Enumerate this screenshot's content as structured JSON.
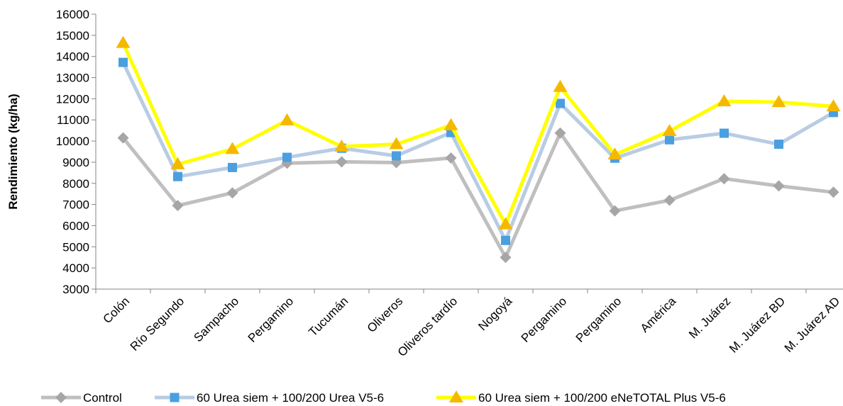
{
  "chart_data": {
    "type": "line",
    "title": "",
    "xlabel": "",
    "ylabel": "Rendimiento (kg/ha)",
    "ylim": [
      3000,
      16000
    ],
    "ytick_step": 1000,
    "yticks": [
      "3000",
      "4000",
      "5000",
      "6000",
      "7000",
      "8000",
      "9000",
      "10000",
      "11000",
      "12000",
      "13000",
      "14000",
      "15000",
      "16000"
    ],
    "grid": false,
    "legend_position": "bottom",
    "categories": [
      "Colón",
      "Río Segundo",
      "Sampacho",
      "Pergamino",
      "Tucumán",
      "Oliveros",
      "Oliveros tardío",
      "Nogoyá",
      "Pergamino",
      "Pergamino",
      "América",
      "M. Juárez",
      "M. Juárez BD",
      "M. Juárez AD"
    ],
    "series": [
      {
        "name": "Control",
        "marker": "diamond",
        "color": "#BFBFBF",
        "marker_color": "#A6A6A6",
        "values": [
          10150,
          6950,
          7550,
          8950,
          9020,
          8980,
          9200,
          4500,
          10380,
          6700,
          7200,
          8220,
          7880,
          7580
        ]
      },
      {
        "name": "60 Urea siem + 100/200 Urea V5-6",
        "marker": "square",
        "color": "#B8CCE4",
        "marker_color": "#4A9FE0",
        "values": [
          13720,
          8320,
          8750,
          9230,
          9660,
          9300,
          10400,
          5300,
          11780,
          9190,
          10060,
          10370,
          9850,
          11350
        ]
      },
      {
        "name": "60 Urea siem + 100/200 eNeTOTAL Plus V5-6",
        "marker": "triangle",
        "color": "#FFFF00",
        "marker_color": "#F5B800",
        "values": [
          14640,
          8900,
          9620,
          10980,
          9740,
          9850,
          10750,
          6060,
          12560,
          9360,
          10470,
          11880,
          11840,
          11640
        ]
      }
    ]
  }
}
